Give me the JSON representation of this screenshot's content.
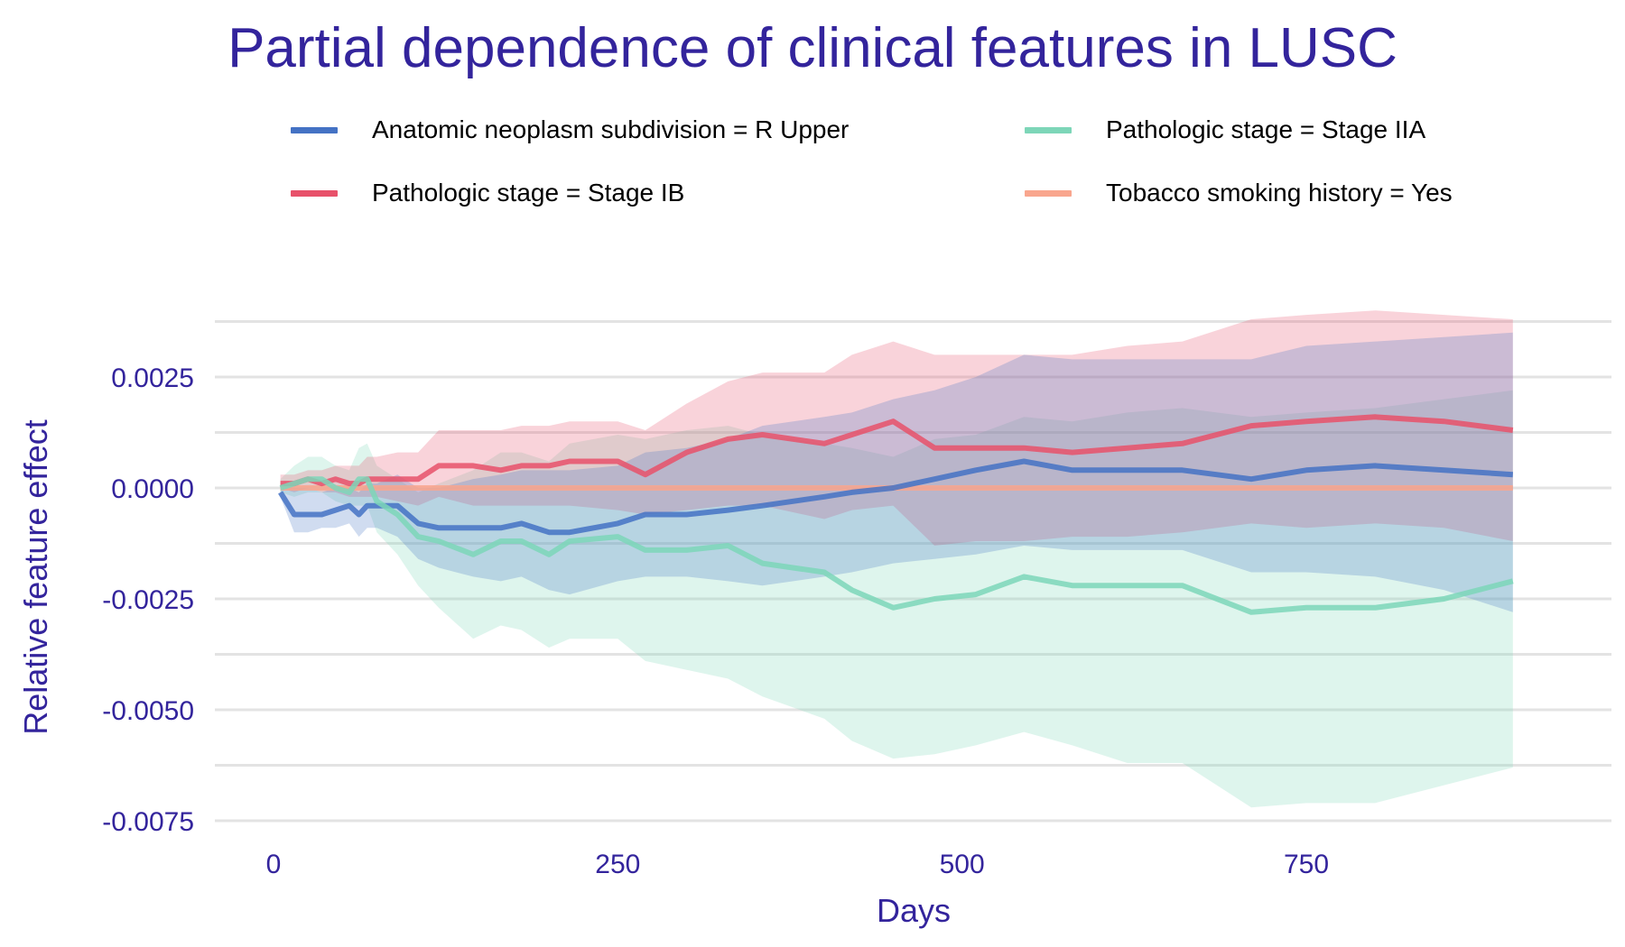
{
  "chart_data": {
    "type": "line",
    "title": "Partial dependence of clinical features in LUSC",
    "xlabel": "Days",
    "ylabel": "Relative feature effect",
    "xlim": [
      -20,
      940
    ],
    "ylim": [
      -0.0077,
      0.0038
    ],
    "x_ticks": [
      0,
      250,
      500,
      750
    ],
    "x_tick_labels": [
      "0",
      "250",
      "500",
      "750"
    ],
    "y_ticks": [
      0.0025,
      0.0,
      -0.0025,
      -0.005,
      -0.0075
    ],
    "y_tick_labels": [
      "0.0025",
      "0.0000",
      "-0.0025",
      "-0.0050",
      "-0.0075"
    ],
    "grid": true,
    "legend_position": "top",
    "series": [
      {
        "name": "Anatomic neoplasm subdivision = R Upper",
        "color": "#4472C4",
        "x": [
          5,
          15,
          25,
          35,
          45,
          55,
          62,
          68,
          75,
          90,
          105,
          120,
          145,
          165,
          180,
          200,
          215,
          250,
          270,
          300,
          330,
          355,
          400,
          420,
          450,
          480,
          510,
          545,
          580,
          620,
          660,
          710,
          750,
          800,
          850,
          900
        ],
        "y": [
          -0.0001,
          -0.0006,
          -0.0006,
          -0.0006,
          -0.0005,
          -0.0004,
          -0.0006,
          -0.0004,
          -0.0004,
          -0.0004,
          -0.0008,
          -0.0009,
          -0.0009,
          -0.0009,
          -0.0008,
          -0.001,
          -0.001,
          -0.0008,
          -0.0006,
          -0.0006,
          -0.0005,
          -0.0004,
          -0.0002,
          -0.0001,
          0.0,
          0.0002,
          0.0004,
          0.0006,
          0.0004,
          0.0004,
          0.0004,
          0.0002,
          0.0004,
          0.0005,
          0.0004,
          0.0003
        ],
        "lower": [
          -0.0002,
          -0.001,
          -0.001,
          -0.0009,
          -0.0009,
          -0.0008,
          -0.0011,
          -0.0009,
          -0.0009,
          -0.0011,
          -0.0016,
          -0.0018,
          -0.002,
          -0.0021,
          -0.002,
          -0.0023,
          -0.0024,
          -0.0021,
          -0.002,
          -0.002,
          -0.0021,
          -0.0022,
          -0.002,
          -0.0019,
          -0.0017,
          -0.0016,
          -0.0015,
          -0.0013,
          -0.0014,
          -0.0014,
          -0.0014,
          -0.0019,
          -0.0019,
          -0.002,
          -0.0023,
          -0.0028
        ],
        "upper": [
          0.0001,
          0.0,
          0.0,
          -0.0001,
          0.0,
          0.0,
          -0.0001,
          0.0001,
          0.0001,
          0.0003,
          0.0,
          0.0,
          0.0002,
          0.0003,
          0.0004,
          0.0004,
          0.0004,
          0.0005,
          0.0008,
          0.0009,
          0.0011,
          0.0014,
          0.0016,
          0.0017,
          0.002,
          0.0022,
          0.0025,
          0.003,
          0.0029,
          0.0029,
          0.0029,
          0.0029,
          0.0032,
          0.0033,
          0.0034,
          0.0035
        ]
      },
      {
        "name": "Pathologic stage = Stage IB",
        "color": "#E8516A",
        "x": [
          5,
          15,
          25,
          35,
          45,
          55,
          62,
          68,
          75,
          90,
          105,
          120,
          145,
          165,
          180,
          200,
          215,
          250,
          270,
          300,
          330,
          355,
          400,
          420,
          450,
          480,
          510,
          545,
          580,
          620,
          660,
          710,
          750,
          800,
          850,
          900
        ],
        "y": [
          0.0001,
          0.0001,
          0.0002,
          0.0001,
          0.0002,
          0.0001,
          0.0001,
          0.0002,
          0.0002,
          0.0002,
          0.0002,
          0.0005,
          0.0005,
          0.0004,
          0.0005,
          0.0005,
          0.0006,
          0.0006,
          0.0003,
          0.0008,
          0.0011,
          0.0012,
          0.001,
          0.0012,
          0.0015,
          0.0009,
          0.0009,
          0.0009,
          0.0008,
          0.0009,
          0.001,
          0.0014,
          0.0015,
          0.0016,
          0.0015,
          0.0013
        ],
        "lower": [
          0.0,
          -0.0001,
          0.0,
          -0.0001,
          -0.0001,
          -0.0002,
          -0.0002,
          -0.0002,
          -0.0002,
          -0.0003,
          -0.0004,
          -0.0002,
          -0.0004,
          -0.0004,
          -0.0004,
          -0.0004,
          -0.0004,
          -0.0005,
          -0.0006,
          -0.0005,
          -0.0004,
          -0.0004,
          -0.0007,
          -0.0005,
          -0.0004,
          -0.0013,
          -0.0012,
          -0.0012,
          -0.0011,
          -0.0011,
          -0.001,
          -0.0008,
          -0.0009,
          -0.0008,
          -0.0009,
          -0.0012
        ],
        "upper": [
          0.0003,
          0.0003,
          0.0004,
          0.0004,
          0.0005,
          0.0005,
          0.0005,
          0.0007,
          0.0007,
          0.0008,
          0.0008,
          0.0013,
          0.0013,
          0.0013,
          0.0014,
          0.0014,
          0.0015,
          0.0015,
          0.0013,
          0.0019,
          0.0024,
          0.0026,
          0.0026,
          0.003,
          0.0033,
          0.003,
          0.003,
          0.003,
          0.003,
          0.0032,
          0.0033,
          0.0038,
          0.0039,
          0.004,
          0.0039,
          0.0038
        ]
      },
      {
        "name": "Pathologic stage = Stage IIA",
        "color": "#7DD6B8",
        "x": [
          5,
          15,
          25,
          35,
          45,
          55,
          62,
          68,
          75,
          90,
          105,
          120,
          145,
          165,
          180,
          200,
          215,
          250,
          270,
          300,
          330,
          355,
          400,
          420,
          450,
          480,
          510,
          545,
          580,
          620,
          660,
          710,
          750,
          800,
          850,
          900
        ],
        "y": [
          0.0,
          0.0001,
          0.0002,
          0.0002,
          0.0,
          -0.0001,
          0.0002,
          0.0002,
          -0.0003,
          -0.0006,
          -0.0011,
          -0.0012,
          -0.0015,
          -0.0012,
          -0.0012,
          -0.0015,
          -0.0012,
          -0.0011,
          -0.0014,
          -0.0014,
          -0.0013,
          -0.0017,
          -0.0019,
          -0.0023,
          -0.0027,
          -0.0025,
          -0.0024,
          -0.002,
          -0.0022,
          -0.0022,
          -0.0022,
          -0.0028,
          -0.0027,
          -0.0027,
          -0.0025,
          -0.0021
        ],
        "lower": [
          -0.0001,
          -0.0002,
          -0.0001,
          -0.0001,
          -0.0003,
          -0.0004,
          -0.0004,
          -0.0004,
          -0.001,
          -0.0015,
          -0.0022,
          -0.0027,
          -0.0034,
          -0.0031,
          -0.0032,
          -0.0036,
          -0.0034,
          -0.0034,
          -0.0039,
          -0.0041,
          -0.0043,
          -0.0047,
          -0.0052,
          -0.0057,
          -0.0061,
          -0.006,
          -0.0058,
          -0.0055,
          -0.0058,
          -0.0062,
          -0.0062,
          -0.0072,
          -0.0071,
          -0.0071,
          -0.0067,
          -0.0063
        ],
        "upper": [
          0.0002,
          0.0005,
          0.0007,
          0.0007,
          0.0005,
          0.0004,
          0.0009,
          0.001,
          0.0005,
          0.0002,
          -0.0001,
          0.0001,
          0.0004,
          0.0008,
          0.0008,
          0.0006,
          0.001,
          0.0012,
          0.0011,
          0.0013,
          0.0014,
          0.0012,
          0.001,
          0.0009,
          0.0007,
          0.0011,
          0.0012,
          0.0016,
          0.0015,
          0.0017,
          0.0018,
          0.0016,
          0.0017,
          0.0018,
          0.002,
          0.0022
        ]
      },
      {
        "name": "Tobacco smoking history = Yes",
        "color": "#F9A68E",
        "x": [
          5,
          900
        ],
        "y": [
          0.0,
          0.0
        ],
        "lower": [
          0.0,
          0.0
        ],
        "upper": [
          0.0,
          0.0
        ]
      }
    ]
  }
}
